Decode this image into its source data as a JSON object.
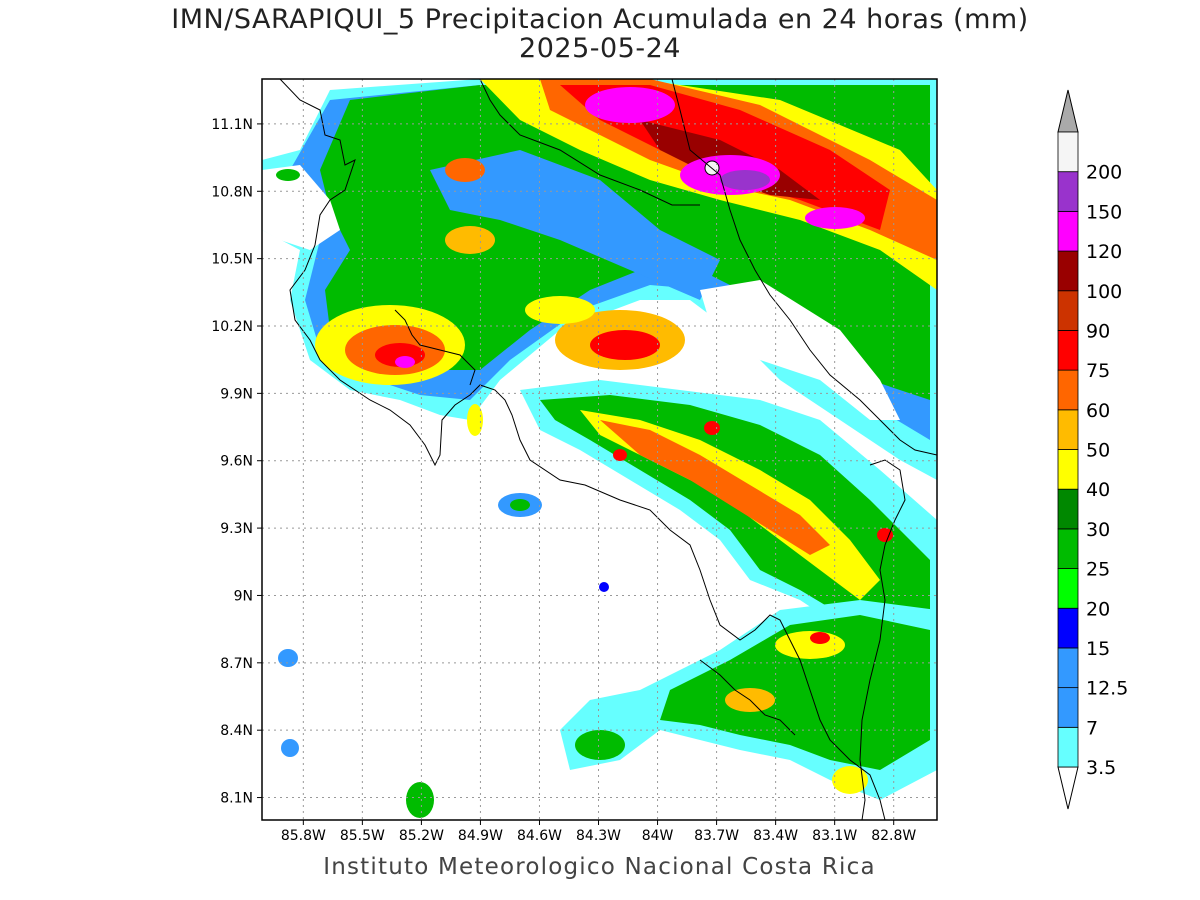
{
  "title": {
    "line1": "IMN/SARAPIQUI_5 Precipitacion Acumulada en 24 horas (mm)",
    "line2": "2025-05-24"
  },
  "footer": "Instituto Meteorologico Nacional Costa Rica",
  "map": {
    "lon_range": [
      -86.01,
      -82.58
    ],
    "lat_range": [
      8.0,
      11.3
    ],
    "lon_ticks": [
      {
        "value": -85.8,
        "label": "85.8W"
      },
      {
        "value": -85.5,
        "label": "85.5W"
      },
      {
        "value": -85.2,
        "label": "85.2W"
      },
      {
        "value": -84.9,
        "label": "84.9W"
      },
      {
        "value": -84.6,
        "label": "84.6W"
      },
      {
        "value": -84.3,
        "label": "84.3W"
      },
      {
        "value": -84.0,
        "label": "84W"
      },
      {
        "value": -83.7,
        "label": "83.7W"
      },
      {
        "value": -83.4,
        "label": "83.4W"
      },
      {
        "value": -83.1,
        "label": "83.1W"
      },
      {
        "value": -82.8,
        "label": "82.8W"
      }
    ],
    "lat_ticks": [
      {
        "value": 8.1,
        "label": "8.1N"
      },
      {
        "value": 8.4,
        "label": "8.4N"
      },
      {
        "value": 8.7,
        "label": "8.7N"
      },
      {
        "value": 9.0,
        "label": "9N"
      },
      {
        "value": 9.3,
        "label": "9.3N"
      },
      {
        "value": 9.6,
        "label": "9.6N"
      },
      {
        "value": 9.9,
        "label": "9.9N"
      },
      {
        "value": 10.2,
        "label": "10.2N"
      },
      {
        "value": 10.5,
        "label": "10.5N"
      },
      {
        "value": 10.8,
        "label": "10.8N"
      },
      {
        "value": 11.1,
        "label": "11.1N"
      }
    ],
    "grid": true,
    "colorbar": [
      {
        "label": "3.5",
        "color": "#66ffff"
      },
      {
        "label": "7",
        "color": "#3399ff"
      },
      {
        "label": "12.5",
        "color": "#3399ff"
      },
      {
        "label": "15",
        "color": "#0000ff"
      },
      {
        "label": "20",
        "color": "#00ff00"
      },
      {
        "label": "25",
        "color": "#00bb00"
      },
      {
        "label": "30",
        "color": "#008800"
      },
      {
        "label": "40",
        "color": "#ffff00"
      },
      {
        "label": "50",
        "color": "#ffbb00"
      },
      {
        "label": "60",
        "color": "#ff6600"
      },
      {
        "label": "75",
        "color": "#ff0000"
      },
      {
        "label": "90",
        "color": "#cc3300"
      },
      {
        "label": "100",
        "color": "#990000"
      },
      {
        "label": "120",
        "color": "#ff00ff"
      },
      {
        "label": "150",
        "color": "#9933cc"
      },
      {
        "label": "200",
        "color": "#f5f5f5"
      }
    ],
    "colorbar_over_color": "#aaaaaa",
    "colorbar_under_color": "#ffffff"
  }
}
